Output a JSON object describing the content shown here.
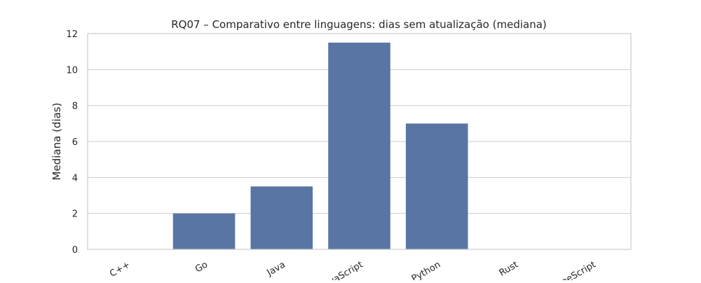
{
  "chart_data": {
    "type": "bar",
    "title": "RQ07 – Comparativo entre linguagens: dias sem atualização (mediana)",
    "xlabel": "",
    "ylabel": "Mediana (dias)",
    "categories": [
      "C++",
      "Go",
      "Java",
      "JavaScript",
      "Python",
      "Rust",
      "TypeScript"
    ],
    "values": [
      0,
      2,
      3.5,
      11.5,
      7,
      0,
      0
    ],
    "ylim": [
      0,
      12
    ],
    "yticks": [
      "0",
      "2",
      "4",
      "6",
      "8",
      "10",
      "12"
    ],
    "grid": "horizontal",
    "bar_color": "#5875a4",
    "xtick_rotation": -30
  }
}
